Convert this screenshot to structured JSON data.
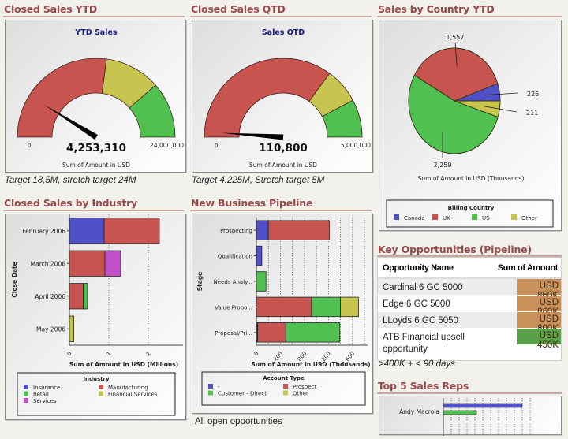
{
  "sections": {
    "ytd": {
      "title": "Closed Sales YTD",
      "caption": "Target 18,5M, stretch target 24M"
    },
    "qtd": {
      "title": "Closed Sales QTD",
      "caption": "Target 4.225M, Stretch target 5M"
    },
    "country": {
      "title": "Sales by Country YTD"
    },
    "industry": {
      "title": "Closed Sales by Industry"
    },
    "pipeline": {
      "title": "New Business Pipeline",
      "caption": "All open opportunities"
    },
    "opps": {
      "title": "Key Opportunities (Pipeline)",
      "caption": ">400K + < 90 days"
    },
    "reps": {
      "title": "Top 5 Sales Reps"
    }
  },
  "colors": {
    "red": "#c85450",
    "yellow": "#c8c450",
    "green": "#50c050",
    "blue": "#5050c8",
    "magenta": "#c050c8",
    "orange_cell": "#c8905a",
    "green_cell": "#5aa048"
  },
  "chart_data": [
    {
      "type": "gauge",
      "title": "YTD Sales",
      "value": 4253310,
      "value_label": "4,253,310",
      "min": 0,
      "min_label": "0",
      "max": 24000000,
      "max_label": "24,000,000",
      "bands": [
        {
          "from": 0,
          "to": 13000000,
          "color": "red"
        },
        {
          "from": 13000000,
          "to": 18500000,
          "color": "yellow"
        },
        {
          "from": 18500000,
          "to": 24000000,
          "color": "green"
        }
      ],
      "xlabel": "Sum of Amount in USD"
    },
    {
      "type": "gauge",
      "title": "Sales QTD",
      "value": 110800,
      "value_label": "110,800",
      "min": 0,
      "min_label": "0",
      "max": 5000000,
      "max_label": "5,000,000",
      "bands": [
        {
          "from": 0,
          "to": 3500000,
          "color": "red"
        },
        {
          "from": 3500000,
          "to": 4225000,
          "color": "yellow"
        },
        {
          "from": 4225000,
          "to": 5000000,
          "color": "green"
        }
      ],
      "xlabel": "Sum of Amount in USD"
    },
    {
      "type": "pie",
      "title": "",
      "slices": [
        {
          "label": "Canada",
          "value": 226,
          "value_label": "226",
          "color": "blue"
        },
        {
          "label": "UK",
          "value": 1557,
          "value_label": "1,557",
          "color": "red"
        },
        {
          "label": "US",
          "value": 2259,
          "value_label": "2,259",
          "color": "green"
        },
        {
          "label": "Other",
          "value": 211,
          "value_label": "211",
          "color": "yellow"
        }
      ],
      "xlabel": "Sum of Amount in USD (Thousands)",
      "legend": {
        "title": "Billing Country",
        "placement": "bottom"
      }
    },
    {
      "type": "bar",
      "orientation": "horizontal",
      "stacked": true,
      "categories": [
        "February 2006",
        "March 2006",
        "April 2006",
        "May 2006"
      ],
      "series": [
        {
          "name": "Insurance",
          "color": "blue",
          "values": [
            0.88,
            0,
            0,
            0
          ]
        },
        {
          "name": "Manufacturing",
          "color": "red",
          "values": [
            1.4,
            0.9,
            0.35,
            0
          ]
        },
        {
          "name": "Retail",
          "color": "green",
          "values": [
            0,
            0,
            0.11,
            0
          ]
        },
        {
          "name": "Financial Services",
          "color": "yellow",
          "values": [
            0,
            0,
            0,
            0.11
          ]
        },
        {
          "name": "Services",
          "color": "magenta",
          "values": [
            0,
            0.4,
            0,
            0
          ]
        }
      ],
      "xlabel": "Sum of Amount in USD (Millions)",
      "ylabel": "Close Date",
      "xlim": [
        0,
        2.8
      ],
      "xticks": [
        "0",
        "1",
        "2"
      ],
      "grid": true,
      "legend": {
        "title": "Industry",
        "placement": "bottom",
        "order": [
          "Insurance",
          "Manufacturing",
          "Retail",
          "Financial Services",
          "Services"
        ]
      }
    },
    {
      "type": "bar",
      "orientation": "horizontal",
      "stacked": true,
      "categories": [
        "Prospecting",
        "Qualification",
        "Needs Analy...",
        "Value Propo...",
        "Proposal/Pri..."
      ],
      "series": [
        {
          "name": "-",
          "color": "blue",
          "values": [
            200,
            90,
            0,
            0,
            20
          ]
        },
        {
          "name": "Prospect",
          "color": "red",
          "values": [
            1015,
            0,
            0,
            920,
            470
          ]
        },
        {
          "name": "Customer - Direct",
          "color": "green",
          "values": [
            0,
            0,
            160,
            480,
            900
          ]
        },
        {
          "name": "Other",
          "color": "yellow",
          "values": [
            0,
            0,
            0,
            300,
            0
          ]
        }
      ],
      "xlabel": "Sum of Amount in USD (Thousands)",
      "ylabel": "Stage",
      "xlim": [
        0,
        1800
      ],
      "xticks": [
        "0",
        "400",
        "800",
        "1,200",
        "1,600"
      ],
      "grid": true,
      "legend": {
        "title": "Account Type",
        "placement": "bottom",
        "order": [
          "-",
          "Prospect",
          "Customer - Direct",
          "Other"
        ]
      }
    },
    {
      "type": "bar",
      "orientation": "horizontal",
      "categories": [
        "Andy Macrola"
      ],
      "series": [
        {
          "name": "Series 1",
          "color": "blue",
          "values": [
            100
          ]
        },
        {
          "name": "Series 2",
          "color": "green",
          "values": [
            42
          ]
        }
      ],
      "xlim": [
        0,
        110
      ],
      "grid": true
    }
  ],
  "opportunities": {
    "headers": {
      "name": "Opportunity Name",
      "amount": "Sum of Amount"
    },
    "rows": [
      {
        "name": "Cardinal 6 GC 5000",
        "amount": "USD 860K",
        "status": "orange"
      },
      {
        "name": "Edge 6 GC 5000",
        "amount": "USD 860K",
        "status": "orange"
      },
      {
        "name": "LLoyds 6 GC 5050",
        "amount": "USD 800K",
        "status": "orange"
      },
      {
        "name": "ATB Financial upsell opportunity",
        "amount": "USD 450K",
        "status": "green"
      }
    ]
  }
}
